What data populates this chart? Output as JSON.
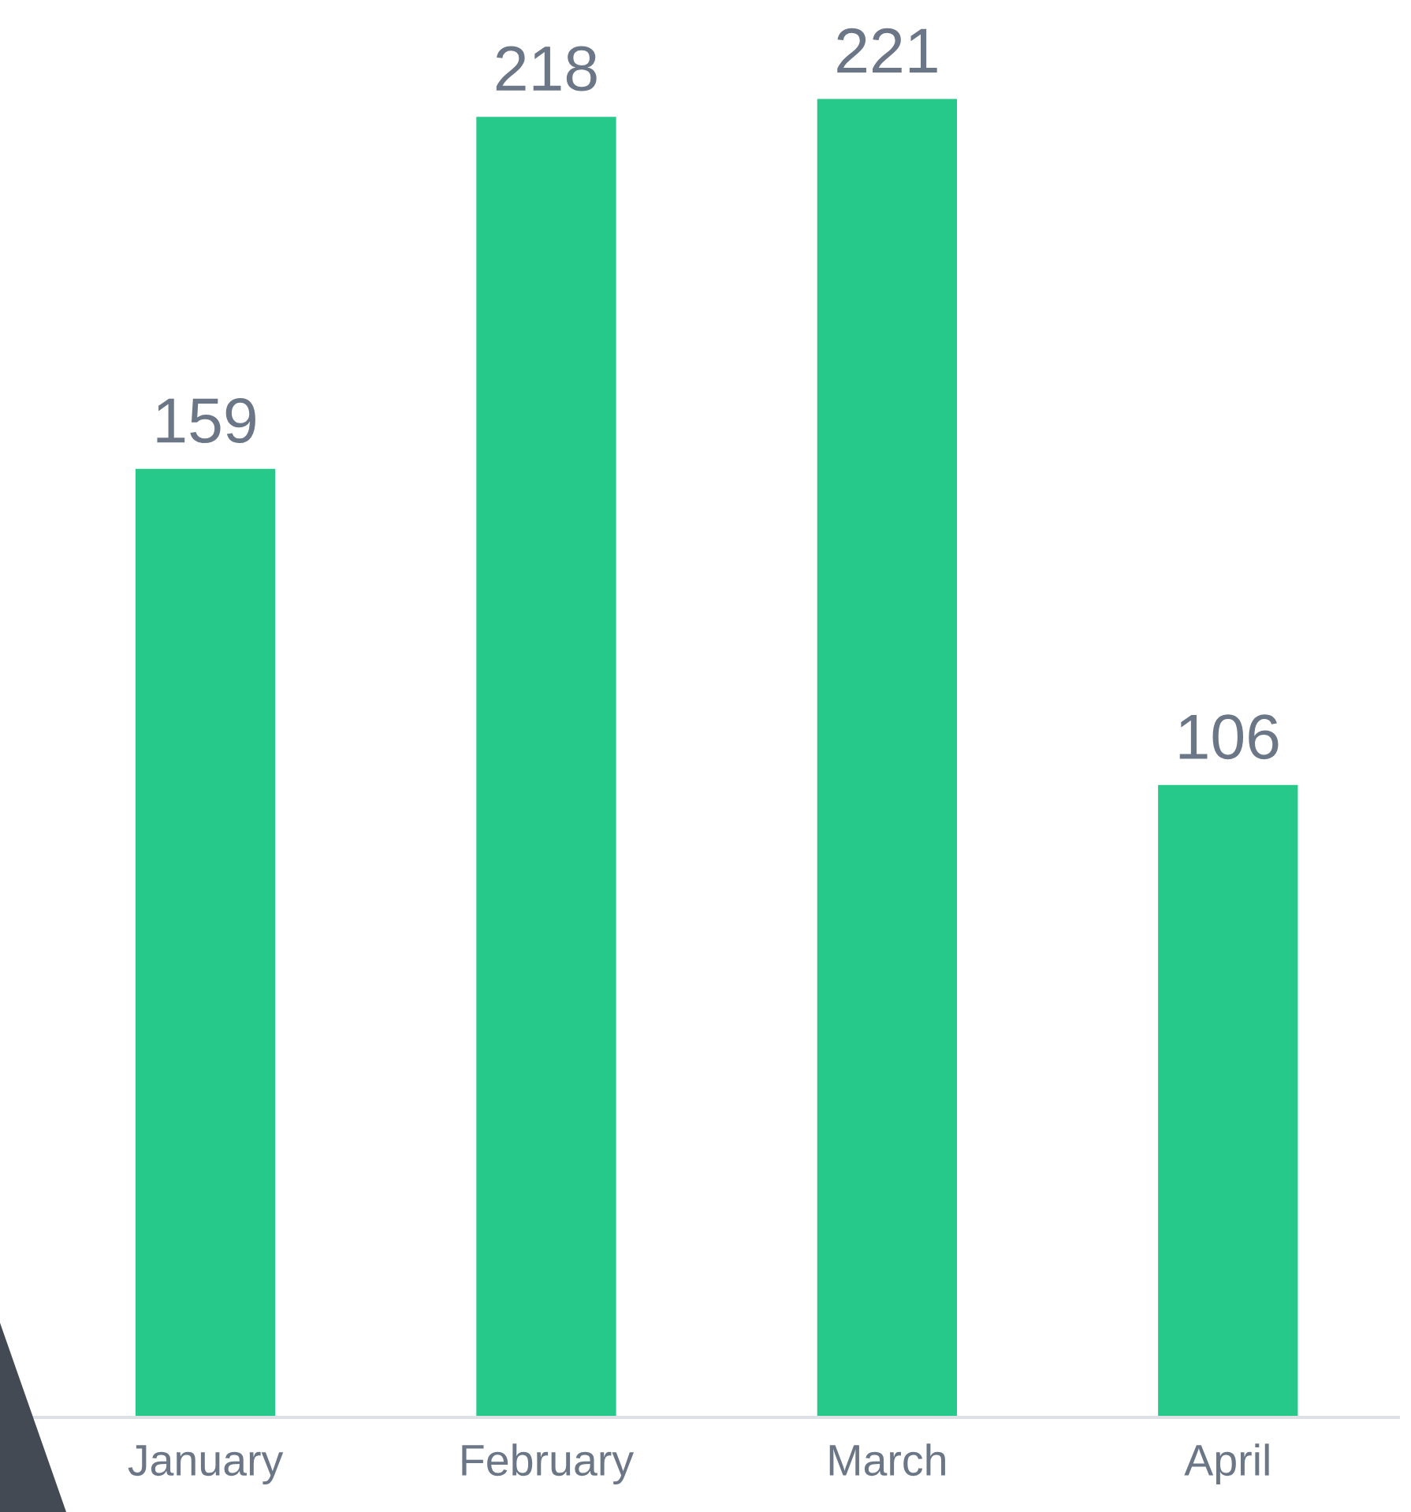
{
  "chart_data": {
    "type": "bar",
    "categories": [
      "January",
      "February",
      "March",
      "April"
    ],
    "values": [
      159,
      218,
      221,
      106
    ],
    "color": "#26c989",
    "data_labels": true,
    "grid": false,
    "legend": false
  }
}
